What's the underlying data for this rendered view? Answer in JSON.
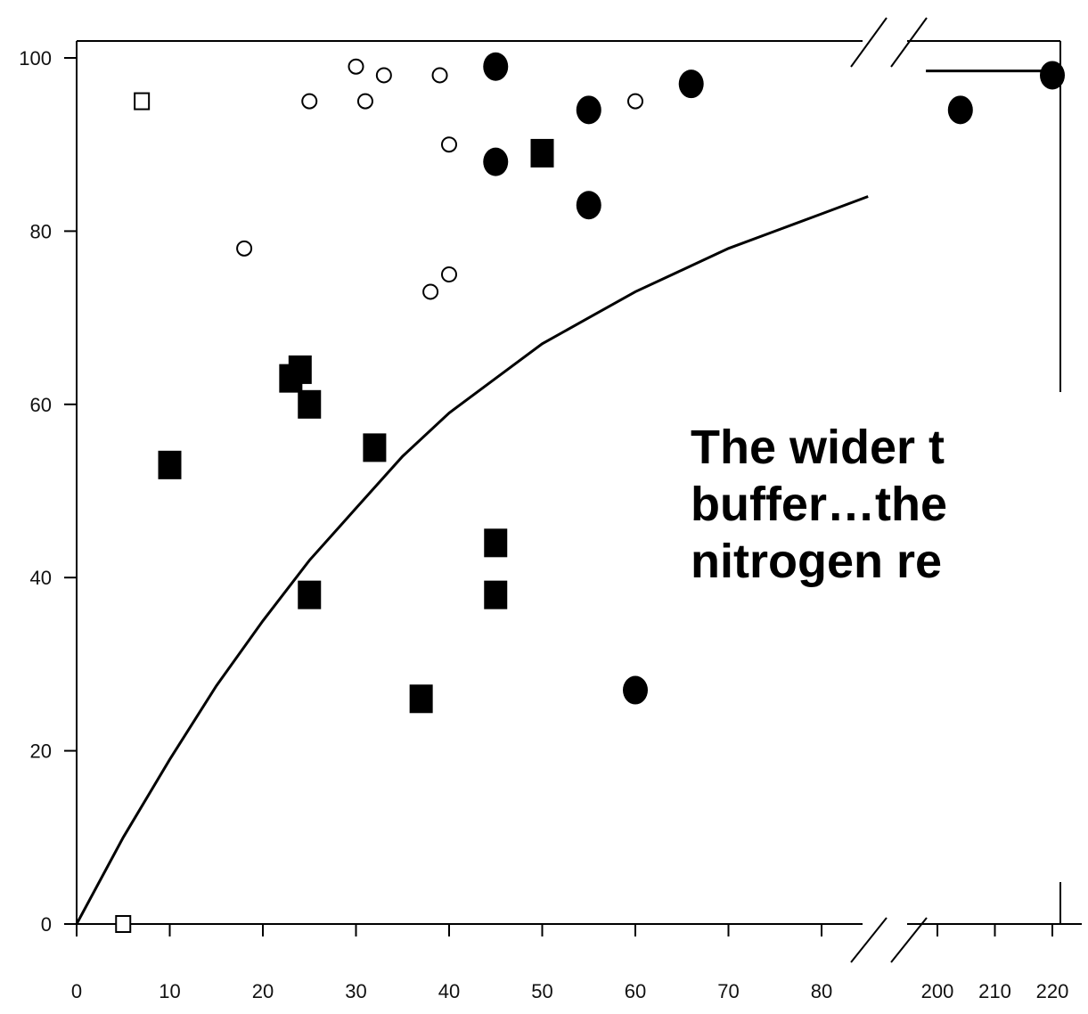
{
  "chart_data": {
    "type": "scatter",
    "title": "",
    "xlabel": "",
    "ylabel": "",
    "grid": false,
    "ylim": [
      0,
      100
    ],
    "x_axis_break": {
      "segment1": [
        0,
        85
      ],
      "segment2": [
        195,
        220
      ]
    },
    "x_ticks": [
      0,
      10,
      20,
      30,
      40,
      50,
      60,
      70,
      80,
      200,
      210,
      220
    ],
    "y_ticks": [
      0,
      20,
      40,
      60,
      80,
      100
    ],
    "series": [
      {
        "marker": "open-circle",
        "points": [
          [
            18,
            78
          ],
          [
            25,
            95
          ],
          [
            30,
            99
          ],
          [
            31,
            95
          ],
          [
            33,
            98
          ],
          [
            38,
            73
          ],
          [
            39,
            98
          ],
          [
            40,
            90
          ],
          [
            40,
            75
          ],
          [
            60,
            95
          ]
        ]
      },
      {
        "marker": "filled-circle",
        "points": [
          [
            45,
            99
          ],
          [
            45,
            88
          ],
          [
            55,
            94
          ],
          [
            55,
            83
          ],
          [
            60,
            27
          ],
          [
            66,
            97
          ],
          [
            204,
            94
          ],
          [
            220,
            98
          ]
        ]
      },
      {
        "marker": "open-square",
        "points": [
          [
            5,
            0
          ],
          [
            7,
            95
          ]
        ]
      },
      {
        "marker": "filled-square",
        "points": [
          [
            10,
            53
          ],
          [
            23,
            63
          ],
          [
            24,
            64
          ],
          [
            25,
            60
          ],
          [
            25,
            38
          ],
          [
            32,
            55
          ],
          [
            37,
            26
          ],
          [
            45,
            44
          ],
          [
            45,
            38
          ],
          [
            50,
            89
          ]
        ]
      }
    ],
    "fit_curve": {
      "segment1": [
        [
          0,
          0
        ],
        [
          5,
          10
        ],
        [
          10,
          19
        ],
        [
          15,
          27.5
        ],
        [
          20,
          35
        ],
        [
          25,
          42
        ],
        [
          30,
          48
        ],
        [
          35,
          54
        ],
        [
          40,
          59
        ],
        [
          45,
          63
        ],
        [
          50,
          67
        ],
        [
          55,
          70
        ],
        [
          60,
          73
        ],
        [
          65,
          75.5
        ],
        [
          70,
          78
        ],
        [
          75,
          80
        ],
        [
          80,
          82
        ],
        [
          85,
          84
        ]
      ],
      "segment2": [
        [
          198,
          98.5
        ],
        [
          220,
          98.5
        ]
      ]
    }
  },
  "overlay": {
    "lines": [
      "The wider t",
      "buffer…the",
      "nitrogen re"
    ]
  }
}
